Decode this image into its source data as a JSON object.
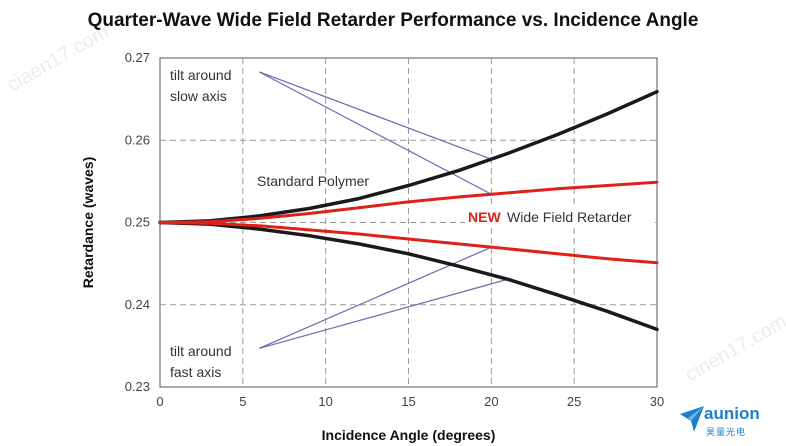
{
  "chart_data": {
    "type": "line",
    "title": "Quarter-Wave Wide Field Retarder Performance vs. Incidence Angle",
    "xlabel": "Incidence Angle (degrees)",
    "ylabel": "Retardance (waves)",
    "xlim": [
      0,
      30
    ],
    "ylim": [
      0.23,
      0.27
    ],
    "x_ticks": [
      "0",
      "5",
      "10",
      "15",
      "20",
      "25",
      "30"
    ],
    "y_ticks": [
      "0.23",
      "0.24",
      "0.25",
      "0.26",
      "0.27"
    ],
    "grid": "dashed",
    "colors": {
      "standard": "#1a1a1a",
      "wide_field": "#e0201b",
      "pointer": "#6b6bb0",
      "title": "#111111",
      "logo": "#1f7fc6"
    },
    "series": [
      {
        "group": "standard",
        "x": [
          0,
          3,
          6,
          9,
          12,
          15,
          18,
          21,
          24,
          27,
          30
        ],
        "y": [
          0.25,
          0.2502,
          0.2508,
          0.2517,
          0.2529,
          0.2545,
          0.2563,
          0.2584,
          0.2607,
          0.2632,
          0.2659
        ]
      },
      {
        "group": "standard",
        "x": [
          0,
          3,
          6,
          9,
          12,
          15,
          18,
          21,
          24,
          27,
          30
        ],
        "y": [
          0.25,
          0.2498,
          0.2492,
          0.2484,
          0.2474,
          0.2462,
          0.2447,
          0.2431,
          0.2412,
          0.2392,
          0.237
        ]
      },
      {
        "group": "wide_field",
        "x": [
          0,
          3,
          6,
          9,
          12,
          15,
          18,
          21,
          24,
          27,
          30
        ],
        "y": [
          0.25,
          0.2501,
          0.2505,
          0.2511,
          0.2518,
          0.2525,
          0.2531,
          0.2536,
          0.2541,
          0.2545,
          0.2549
        ]
      },
      {
        "group": "wide_field",
        "x": [
          0,
          3,
          6,
          9,
          12,
          15,
          18,
          21,
          24,
          27,
          30
        ],
        "y": [
          0.25,
          0.2499,
          0.2496,
          0.2491,
          0.2486,
          0.248,
          0.2474,
          0.2468,
          0.2462,
          0.2456,
          0.2451
        ]
      }
    ],
    "annotations": {
      "tilt_slow_line1": "tilt around",
      "tilt_slow_line2": "slow axis",
      "tilt_fast_line1": "tilt around",
      "tilt_fast_line2": "fast axis",
      "standard_polymer": "Standard Polymer",
      "new_label": "NEW",
      "wide_field_label": "Wide Field Retarder"
    }
  },
  "logo": {
    "name": "aunion",
    "sub": "昊量光电"
  },
  "watermarks": [
    "ciaen17.com",
    "cinen17.com"
  ]
}
